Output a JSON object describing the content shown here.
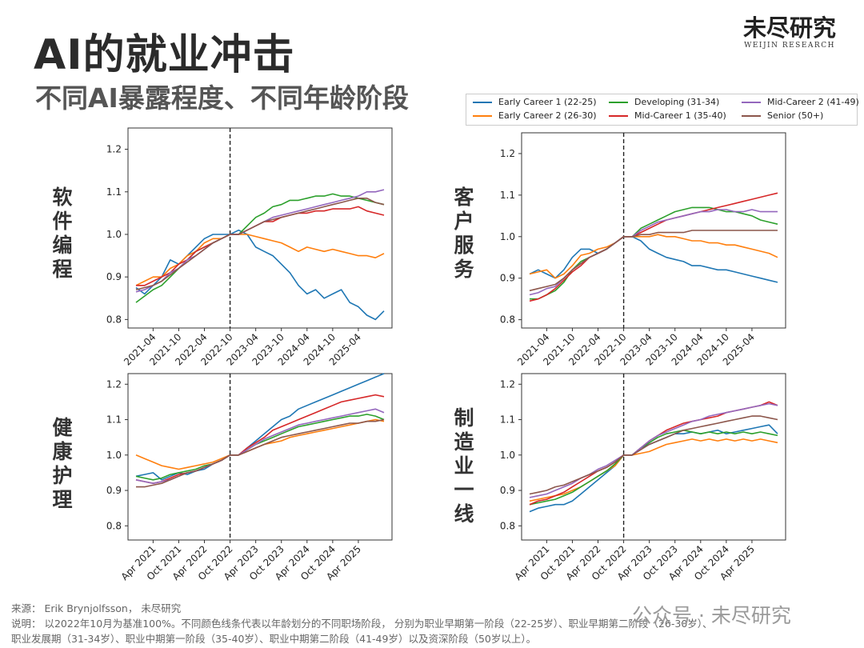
{
  "header": {
    "title": "AI的就业冲击",
    "subtitle": "不同AI暴露程度、不同年龄阶段",
    "logo_cn": "未尽研究",
    "logo_en": "WEIJIN RESEARCH"
  },
  "legend": [
    {
      "name": "Early Career 1 (22-25)",
      "color": "#1f77b4"
    },
    {
      "name": "Developing (31-34)",
      "color": "#2ca02c"
    },
    {
      "name": "Mid-Career 2 (41-49)",
      "color": "#9467bd"
    },
    {
      "name": "Early Career 2 (26-30)",
      "color": "#ff7f0e"
    },
    {
      "name": "Mid-Career 1 (35-40)",
      "color": "#d62728"
    },
    {
      "name": "Senior (50+)",
      "color": "#8c564b"
    }
  ],
  "labels": {
    "software": "软件编程",
    "customer": "客户服务",
    "health": "健康护理",
    "manufacturing": "制造业一线"
  },
  "footer": {
    "source": "来源：  Erik Brynjolfsson，  未尽研究",
    "note1": "说明：  以2022年10月为基准100%。不同颜色线条代表以年龄划分的不同职场阶段，  分别为职业早期第一阶段（22-25岁）、职业早期第二阶段（26-30岁）、",
    "note2": "职业发展期（31-34岁）、职业中期第一阶段（35-40岁）、职业中期第二阶段（41-49岁）以及资深阶段（50岁以上）。"
  },
  "watermark": "公众号 · 未尽研究",
  "chart_data": [
    {
      "type": "line",
      "panel": "软件编程",
      "ylim": [
        0.78,
        1.25
      ],
      "yticks": [
        0.8,
        0.9,
        1.0,
        1.1,
        1.2
      ],
      "xticks": [
        "2021-04",
        "2021-10",
        "2022-04",
        "2022-10",
        "2023-04",
        "2023-10",
        "2024-04",
        "2024-10",
        "2025-04"
      ],
      "baseline": "2022-10",
      "series": [
        {
          "name": "Early Career 1 (22-25)",
          "values": [
            0.875,
            0.86,
            0.88,
            0.9,
            0.94,
            0.93,
            0.95,
            0.97,
            0.99,
            1.0,
            1.0,
            1.0,
            1.01,
            1.0,
            0.97,
            0.96,
            0.95,
            0.93,
            0.91,
            0.88,
            0.86,
            0.87,
            0.85,
            0.86,
            0.87,
            0.84,
            0.83,
            0.81,
            0.8,
            0.82
          ]
        },
        {
          "name": "Early Career 2 (26-30)",
          "values": [
            0.88,
            0.89,
            0.9,
            0.9,
            0.92,
            0.93,
            0.95,
            0.96,
            0.98,
            0.99,
            0.99,
            1.0,
            1.0,
            1.0,
            0.995,
            0.99,
            0.985,
            0.98,
            0.97,
            0.96,
            0.97,
            0.965,
            0.96,
            0.965,
            0.96,
            0.955,
            0.95,
            0.95,
            0.945,
            0.955
          ]
        },
        {
          "name": "Developing (31-34)",
          "values": [
            0.84,
            0.855,
            0.87,
            0.88,
            0.9,
            0.92,
            0.94,
            0.96,
            0.97,
            0.98,
            0.99,
            1.0,
            1.0,
            1.02,
            1.04,
            1.05,
            1.065,
            1.07,
            1.08,
            1.08,
            1.085,
            1.09,
            1.09,
            1.095,
            1.09,
            1.09,
            1.085,
            1.08,
            1.075,
            1.07
          ]
        },
        {
          "name": "Mid-Career 1 (35-40)",
          "values": [
            0.88,
            0.88,
            0.89,
            0.9,
            0.91,
            0.93,
            0.94,
            0.96,
            0.97,
            0.98,
            0.99,
            1.0,
            1.0,
            1.01,
            1.02,
            1.03,
            1.03,
            1.04,
            1.045,
            1.05,
            1.05,
            1.055,
            1.055,
            1.06,
            1.06,
            1.06,
            1.065,
            1.055,
            1.05,
            1.045
          ]
        },
        {
          "name": "Mid-Career 2 (41-49)",
          "values": [
            0.865,
            0.87,
            0.88,
            0.89,
            0.91,
            0.92,
            0.94,
            0.95,
            0.965,
            0.98,
            0.99,
            1.0,
            1.0,
            1.01,
            1.02,
            1.03,
            1.04,
            1.045,
            1.05,
            1.055,
            1.06,
            1.065,
            1.07,
            1.075,
            1.08,
            1.085,
            1.09,
            1.1,
            1.1,
            1.105
          ]
        },
        {
          "name": "Senior (50+)",
          "values": [
            0.87,
            0.875,
            0.88,
            0.89,
            0.905,
            0.92,
            0.935,
            0.95,
            0.965,
            0.98,
            0.99,
            1.0,
            1.0,
            1.01,
            1.02,
            1.03,
            1.035,
            1.04,
            1.045,
            1.05,
            1.055,
            1.06,
            1.065,
            1.07,
            1.075,
            1.08,
            1.085,
            1.085,
            1.075,
            1.07
          ]
        }
      ]
    },
    {
      "type": "line",
      "panel": "客户服务",
      "ylim": [
        0.78,
        1.25
      ],
      "yticks": [
        0.8,
        0.9,
        1.0,
        1.1,
        1.2
      ],
      "xticks": [
        "2021-04",
        "2021-10",
        "2022-04",
        "2022-10",
        "2023-04",
        "2023-10",
        "2024-04",
        "2024-10",
        "2025-04"
      ],
      "baseline": "2022-10",
      "series": [
        {
          "name": "Early Career 1 (22-25)",
          "values": [
            0.91,
            0.92,
            0.91,
            0.9,
            0.92,
            0.95,
            0.97,
            0.97,
            0.96,
            0.97,
            0.985,
            1.0,
            1.0,
            0.99,
            0.97,
            0.96,
            0.95,
            0.945,
            0.94,
            0.93,
            0.93,
            0.925,
            0.92,
            0.92,
            0.915,
            0.91,
            0.905,
            0.9,
            0.895,
            0.89
          ]
        },
        {
          "name": "Early Career 2 (26-30)",
          "values": [
            0.91,
            0.915,
            0.92,
            0.9,
            0.91,
            0.93,
            0.955,
            0.96,
            0.97,
            0.975,
            0.985,
            1.0,
            1.0,
            1.0,
            1.0,
            1.005,
            1.0,
            1.0,
            0.995,
            0.99,
            0.99,
            0.985,
            0.985,
            0.98,
            0.98,
            0.975,
            0.97,
            0.965,
            0.96,
            0.95
          ]
        },
        {
          "name": "Developing (31-34)",
          "values": [
            0.85,
            0.85,
            0.86,
            0.87,
            0.89,
            0.92,
            0.94,
            0.95,
            0.96,
            0.97,
            0.985,
            1.0,
            1.0,
            1.02,
            1.03,
            1.04,
            1.05,
            1.06,
            1.065,
            1.07,
            1.07,
            1.07,
            1.065,
            1.06,
            1.06,
            1.055,
            1.05,
            1.04,
            1.035,
            1.03
          ]
        },
        {
          "name": "Mid-Career 1 (35-40)",
          "values": [
            0.845,
            0.85,
            0.86,
            0.875,
            0.895,
            0.915,
            0.93,
            0.95,
            0.96,
            0.97,
            0.985,
            1.0,
            1.0,
            1.01,
            1.02,
            1.03,
            1.04,
            1.045,
            1.05,
            1.055,
            1.06,
            1.065,
            1.07,
            1.075,
            1.08,
            1.085,
            1.09,
            1.095,
            1.1,
            1.105
          ]
        },
        {
          "name": "Mid-Career 2 (41-49)",
          "values": [
            0.86,
            0.865,
            0.875,
            0.88,
            0.9,
            0.92,
            0.935,
            0.95,
            0.96,
            0.97,
            0.985,
            1.0,
            1.0,
            1.015,
            1.025,
            1.035,
            1.04,
            1.045,
            1.05,
            1.055,
            1.06,
            1.06,
            1.065,
            1.065,
            1.06,
            1.06,
            1.065,
            1.06,
            1.06,
            1.06
          ]
        },
        {
          "name": "Senior (50+)",
          "values": [
            0.87,
            0.875,
            0.88,
            0.885,
            0.9,
            0.92,
            0.935,
            0.95,
            0.96,
            0.97,
            0.985,
            1.0,
            1.0,
            1.005,
            1.005,
            1.01,
            1.01,
            1.01,
            1.01,
            1.015,
            1.015,
            1.015,
            1.015,
            1.015,
            1.015,
            1.015,
            1.015,
            1.015,
            1.015,
            1.015
          ]
        }
      ]
    },
    {
      "type": "line",
      "panel": "健康护理",
      "ylim": [
        0.76,
        1.23
      ],
      "yticks": [
        0.8,
        0.9,
        1.0,
        1.1,
        1.2
      ],
      "xticks": [
        "Apr 2021",
        "Oct 2021",
        "Apr 2022",
        "Oct 2022",
        "Apr 2023",
        "Oct 2023",
        "Apr 2024",
        "Oct 2024",
        "Apr 2025"
      ],
      "baseline": "Oct 2022",
      "series": [
        {
          "name": "Early Career 1 (22-25)",
          "values": [
            0.94,
            0.945,
            0.95,
            0.93,
            0.94,
            0.95,
            0.945,
            0.955,
            0.96,
            0.975,
            0.985,
            1.0,
            1.0,
            1.02,
            1.04,
            1.06,
            1.08,
            1.1,
            1.11,
            1.13,
            1.14,
            1.15,
            1.16,
            1.17,
            1.18,
            1.19,
            1.2,
            1.21,
            1.22,
            1.23
          ]
        },
        {
          "name": "Early Career 2 (26-30)",
          "values": [
            1.0,
            0.99,
            0.98,
            0.97,
            0.965,
            0.96,
            0.965,
            0.97,
            0.975,
            0.98,
            0.99,
            1.0,
            1.0,
            1.01,
            1.02,
            1.03,
            1.035,
            1.04,
            1.05,
            1.055,
            1.06,
            1.065,
            1.07,
            1.075,
            1.08,
            1.085,
            1.09,
            1.095,
            1.1,
            1.095
          ]
        },
        {
          "name": "Developing (31-34)",
          "values": [
            0.94,
            0.935,
            0.93,
            0.935,
            0.945,
            0.95,
            0.955,
            0.96,
            0.97,
            0.975,
            0.985,
            1.0,
            1.0,
            1.015,
            1.03,
            1.04,
            1.05,
            1.06,
            1.07,
            1.08,
            1.085,
            1.09,
            1.095,
            1.1,
            1.105,
            1.11,
            1.11,
            1.115,
            1.11,
            1.1
          ]
        },
        {
          "name": "Mid-Career 1 (35-40)",
          "values": [
            0.93,
            0.925,
            0.92,
            0.925,
            0.935,
            0.945,
            0.95,
            0.955,
            0.965,
            0.975,
            0.985,
            1.0,
            1.0,
            1.02,
            1.035,
            1.05,
            1.07,
            1.08,
            1.09,
            1.1,
            1.11,
            1.12,
            1.13,
            1.14,
            1.15,
            1.155,
            1.16,
            1.165,
            1.17,
            1.165
          ]
        },
        {
          "name": "Mid-Career 2 (41-49)",
          "values": [
            0.93,
            0.925,
            0.92,
            0.925,
            0.93,
            0.94,
            0.95,
            0.955,
            0.965,
            0.975,
            0.985,
            1.0,
            1.0,
            1.015,
            1.03,
            1.045,
            1.055,
            1.065,
            1.075,
            1.085,
            1.09,
            1.095,
            1.1,
            1.105,
            1.11,
            1.115,
            1.12,
            1.125,
            1.13,
            1.12
          ]
        },
        {
          "name": "Senior (50+)",
          "values": [
            0.91,
            0.91,
            0.915,
            0.92,
            0.93,
            0.94,
            0.95,
            0.955,
            0.965,
            0.975,
            0.985,
            1.0,
            1.0,
            1.01,
            1.02,
            1.03,
            1.04,
            1.05,
            1.055,
            1.06,
            1.065,
            1.07,
            1.075,
            1.08,
            1.085,
            1.09,
            1.09,
            1.095,
            1.095,
            1.1
          ]
        }
      ]
    },
    {
      "type": "line",
      "panel": "制造业一线",
      "ylim": [
        0.76,
        1.23
      ],
      "yticks": [
        0.8,
        0.9,
        1.0,
        1.1,
        1.2
      ],
      "xticks": [
        "Apr 2021",
        "Oct 2021",
        "Apr 2022",
        "Oct 2022",
        "Apr 2023",
        "Oct 2023",
        "Apr 2024",
        "Oct 2024",
        "Apr 2025"
      ],
      "baseline": "Oct 2022",
      "series": [
        {
          "name": "Early Career 1 (22-25)",
          "values": [
            0.84,
            0.85,
            0.855,
            0.86,
            0.86,
            0.87,
            0.89,
            0.91,
            0.93,
            0.95,
            0.97,
            1.0,
            1.0,
            1.02,
            1.03,
            1.04,
            1.05,
            1.06,
            1.06,
            1.065,
            1.06,
            1.065,
            1.07,
            1.06,
            1.065,
            1.07,
            1.075,
            1.08,
            1.085,
            1.06
          ]
        },
        {
          "name": "Early Career 2 (26-30)",
          "values": [
            0.87,
            0.875,
            0.88,
            0.885,
            0.89,
            0.9,
            0.91,
            0.925,
            0.94,
            0.955,
            0.97,
            1.0,
            1.0,
            1.005,
            1.01,
            1.02,
            1.03,
            1.035,
            1.04,
            1.045,
            1.04,
            1.045,
            1.04,
            1.045,
            1.04,
            1.045,
            1.04,
            1.045,
            1.04,
            1.035
          ]
        },
        {
          "name": "Developing (31-34)",
          "values": [
            0.86,
            0.865,
            0.87,
            0.875,
            0.885,
            0.895,
            0.91,
            0.925,
            0.94,
            0.955,
            0.975,
            1.0,
            1.0,
            1.02,
            1.035,
            1.05,
            1.06,
            1.065,
            1.07,
            1.065,
            1.06,
            1.065,
            1.06,
            1.065,
            1.06,
            1.065,
            1.06,
            1.065,
            1.06,
            1.055
          ]
        },
        {
          "name": "Mid-Career 1 (35-40)",
          "values": [
            0.86,
            0.87,
            0.875,
            0.885,
            0.895,
            0.91,
            0.925,
            0.94,
            0.955,
            0.965,
            0.98,
            1.0,
            1.0,
            1.02,
            1.04,
            1.055,
            1.07,
            1.08,
            1.09,
            1.095,
            1.1,
            1.105,
            1.11,
            1.12,
            1.125,
            1.13,
            1.135,
            1.14,
            1.15,
            1.14
          ]
        },
        {
          "name": "Mid-Career 2 (41-49)",
          "values": [
            0.88,
            0.885,
            0.89,
            0.9,
            0.91,
            0.92,
            0.935,
            0.945,
            0.96,
            0.97,
            0.985,
            1.0,
            1.0,
            1.02,
            1.04,
            1.055,
            1.065,
            1.075,
            1.085,
            1.095,
            1.1,
            1.11,
            1.115,
            1.12,
            1.125,
            1.13,
            1.135,
            1.14,
            1.145,
            1.14
          ]
        },
        {
          "name": "Senior (50+)",
          "values": [
            0.89,
            0.895,
            0.9,
            0.91,
            0.915,
            0.925,
            0.935,
            0.945,
            0.955,
            0.965,
            0.98,
            1.0,
            1.0,
            1.015,
            1.03,
            1.04,
            1.05,
            1.06,
            1.07,
            1.075,
            1.08,
            1.085,
            1.09,
            1.095,
            1.1,
            1.105,
            1.11,
            1.11,
            1.105,
            1.1
          ]
        }
      ]
    }
  ]
}
